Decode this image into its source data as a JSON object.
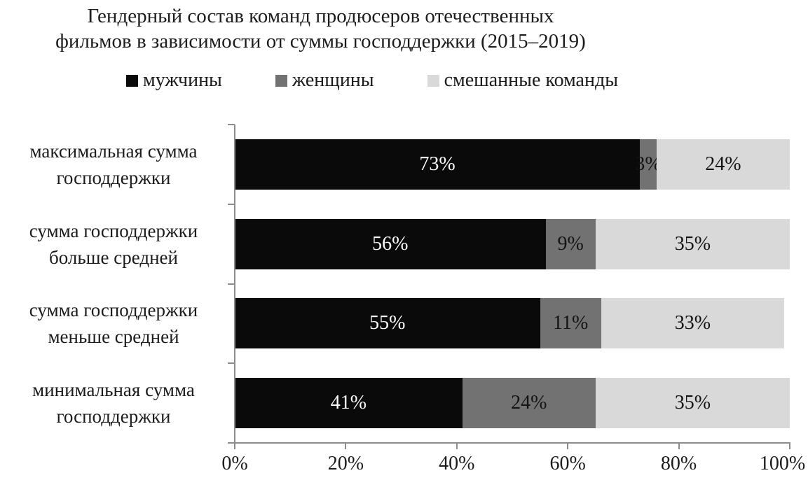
{
  "title": {
    "line1": "Гендерный состав команд продюсеров отечественных",
    "line2": "фильмов в зависимости от суммы господдержки (2015–2019)"
  },
  "legend": {
    "items": [
      {
        "key": "men",
        "label": "мужчины",
        "color": "#0a0a0a"
      },
      {
        "key": "women",
        "label": "женщины",
        "color": "#727272"
      },
      {
        "key": "mixed-teams",
        "label": "смешанные команды",
        "color": "#d9d9d9"
      }
    ]
  },
  "chart_data": {
    "type": "bar",
    "orientation": "horizontal-stacked",
    "title": "Гендерный состав команд продюсеров отечественных фильмов в зависимости от суммы господдержки (2015–2019)",
    "categories": [
      "максимальная сумма господдержки",
      "сумма господдержки больше средней",
      "сумма господдержки меньше средней",
      "минимальная сумма господдержки"
    ],
    "categories_lines": [
      [
        "максимальная сумма",
        "господдержки"
      ],
      [
        "сумма господдержки",
        "больше средней"
      ],
      [
        "сумма господдержки",
        "меньше средней"
      ],
      [
        "минимальная сумма",
        "господдержки"
      ]
    ],
    "series": [
      {
        "key": "men",
        "name": "мужчины",
        "color": "#0a0a0a",
        "label_color": "#ffffff",
        "values": [
          73,
          56,
          55,
          41
        ]
      },
      {
        "key": "women",
        "name": "женщины",
        "color": "#727272",
        "label_color": "#141414",
        "values": [
          3,
          9,
          11,
          24
        ]
      },
      {
        "key": "mixed-teams",
        "name": "смешанные команды",
        "color": "#d9d9d9",
        "label_color": "#141414",
        "values": [
          24,
          35,
          33,
          35
        ]
      }
    ],
    "value_suffix": "%",
    "x_ticks": [
      "0%",
      "20%",
      "40%",
      "60%",
      "80%",
      "100%"
    ],
    "xlim": [
      0,
      100
    ],
    "legend_position": "top",
    "grid": false,
    "axis_color": "#8c8c8c"
  }
}
